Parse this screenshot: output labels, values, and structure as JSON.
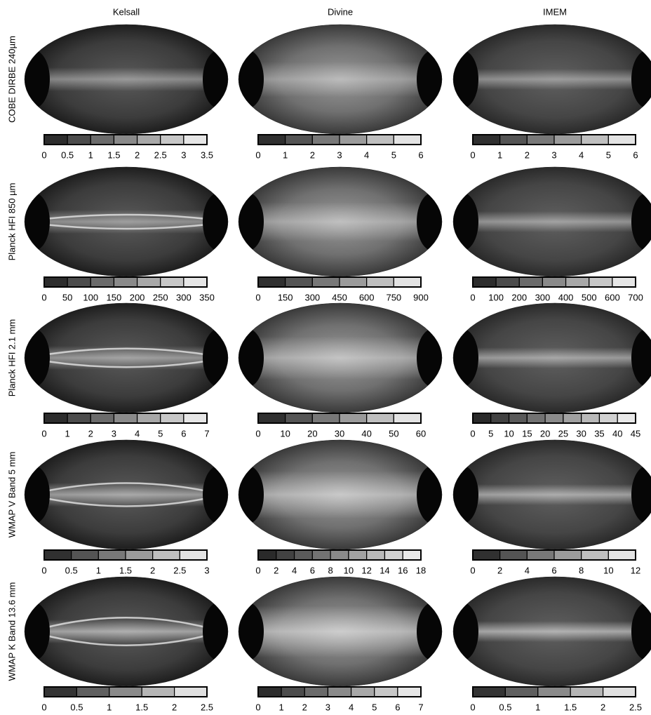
{
  "columns": [
    "Kelsall",
    "Divine",
    "IMEM"
  ],
  "rows": [
    {
      "label": "COBE DIRBE 240µm",
      "colorbars": [
        [
          "0",
          "0.5",
          "1",
          "1.5",
          "2",
          "2.5",
          "3",
          "3.5"
        ],
        [
          "0",
          "1",
          "2",
          "3",
          "4",
          "5",
          "6"
        ],
        [
          "0",
          "1",
          "2",
          "3",
          "4",
          "5",
          "6"
        ]
      ]
    },
    {
      "label": "Planck HFI 850 µm",
      "colorbars": [
        [
          "0",
          "50",
          "100",
          "150",
          "200",
          "250",
          "300",
          "350"
        ],
        [
          "0",
          "150",
          "300",
          "450",
          "600",
          "750",
          "900"
        ],
        [
          "0",
          "100",
          "200",
          "300",
          "400",
          "500",
          "600",
          "700"
        ]
      ]
    },
    {
      "label": "Planck HFI 2.1 mm",
      "colorbars": [
        [
          "0",
          "1",
          "2",
          "3",
          "4",
          "5",
          "6",
          "7"
        ],
        [
          "0",
          "10",
          "20",
          "30",
          "40",
          "50",
          "60"
        ],
        [
          "0",
          "5",
          "10",
          "15",
          "20",
          "25",
          "30",
          "35",
          "40",
          "45"
        ]
      ]
    },
    {
      "label": "WMAP V Band 5 mm",
      "colorbars": [
        [
          "0",
          "0.5",
          "1",
          "1.5",
          "2",
          "2.5",
          "3"
        ],
        [
          "0",
          "2",
          "4",
          "6",
          "8",
          "10",
          "12",
          "14",
          "16",
          "18"
        ],
        [
          "0",
          "2",
          "4",
          "6",
          "8",
          "10",
          "12"
        ]
      ]
    },
    {
      "label": "WMAP K Band 13.6 mm",
      "colorbars": [
        [
          "0",
          "0.5",
          "1",
          "1.5",
          "2",
          "2.5"
        ],
        [
          "0",
          "1",
          "2",
          "3",
          "4",
          "5",
          "6",
          "7"
        ],
        [
          "0",
          "0.5",
          "1",
          "1.5",
          "2",
          "2.5"
        ]
      ]
    }
  ]
}
